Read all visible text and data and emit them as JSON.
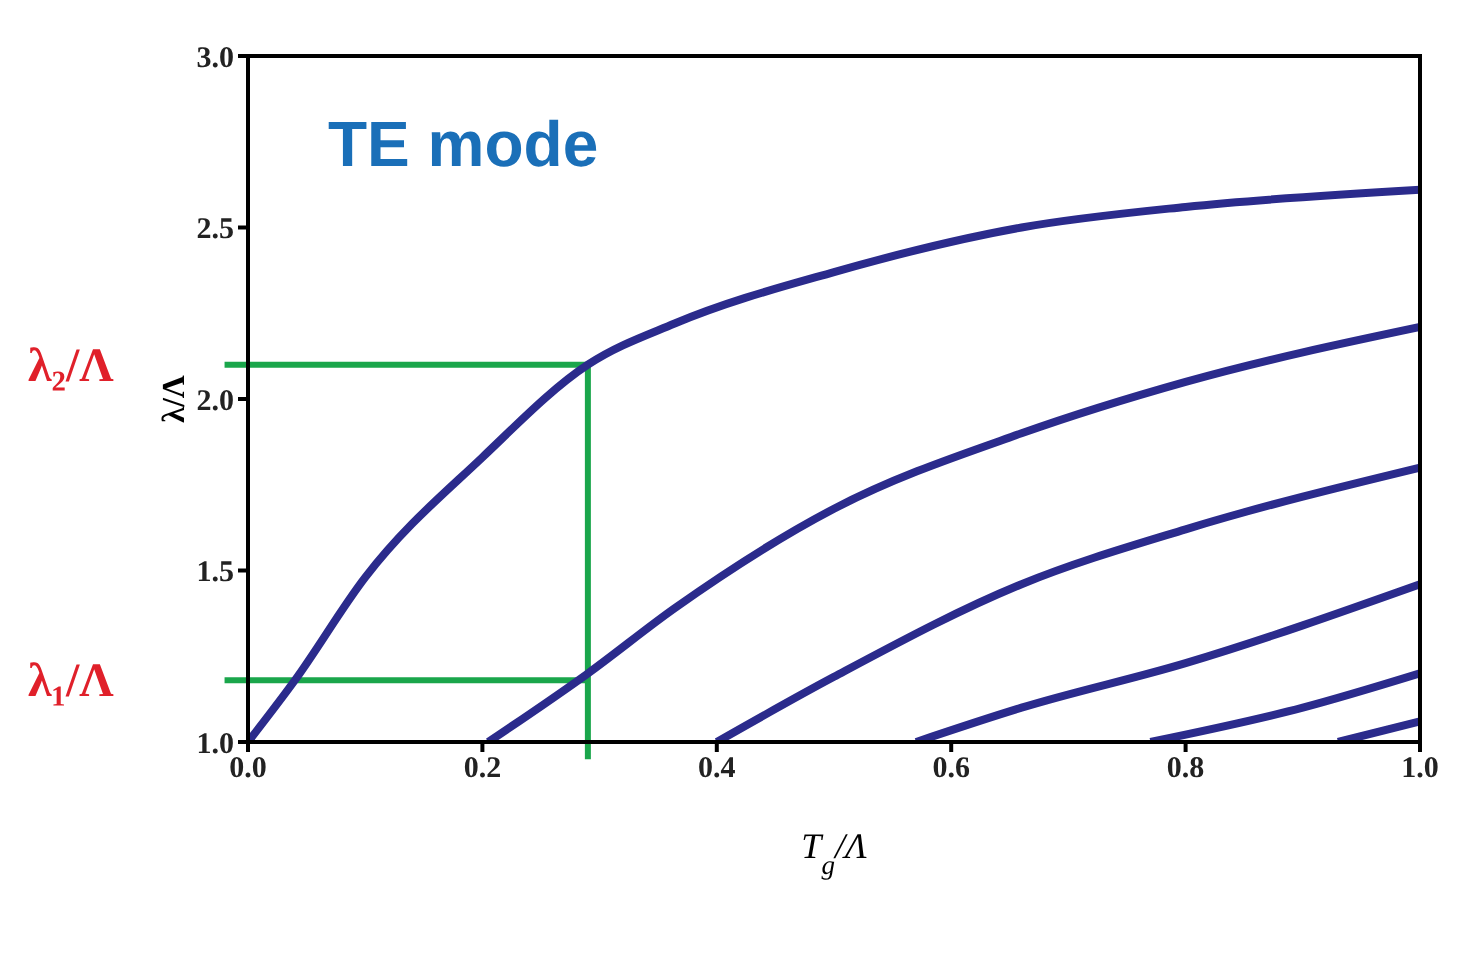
{
  "chart_data": {
    "type": "line",
    "title": "TE mode",
    "xlabel": "T$_{g}$/Λ",
    "ylabel": "λ/Λ",
    "xlim": [
      0,
      1
    ],
    "xticks": [
      {
        "value": 0,
        "label": "0.0"
      },
      0.2,
      0.4,
      0.6,
      0.8,
      {
        "value": 1,
        "label": "1.0"
      }
    ],
    "ylim": [
      1,
      3
    ],
    "yticks": [
      {
        "value": 1,
        "label": "1.0"
      },
      1.5,
      {
        "value": 2,
        "label": "2.0"
      },
      2.5,
      {
        "value": 3,
        "label": "3.0"
      }
    ],
    "grid": false,
    "marker": "none",
    "line_style": "solid",
    "series": [
      {
        "color": "#2b2b8c",
        "x": [
          0,
          0.04,
          0.1,
          0.2,
          0.29,
          0.364,
          0.5,
          0.66,
          0.8,
          1.0
        ],
        "values": [
          1.0,
          1.18,
          1.48,
          1.83,
          2.1,
          2.22,
          2.37,
          2.5,
          2.56,
          2.61
        ]
      },
      {
        "color": "#2b2b8c",
        "x": [
          0.205,
          0.29,
          0.364,
          0.5,
          0.66,
          0.8,
          1.0
        ],
        "values": [
          1.0,
          1.2,
          1.39,
          1.68,
          1.9,
          2.05,
          2.21
        ]
      },
      {
        "color": "#2b2b8c",
        "x": [
          0.4,
          0.5,
          0.66,
          0.8,
          1.0
        ],
        "values": [
          1.0,
          1.19,
          1.46,
          1.62,
          1.8
        ]
      },
      {
        "color": "#2b2b8c",
        "x": [
          0.57,
          0.66,
          0.8,
          1.0
        ],
        "values": [
          1.0,
          1.1,
          1.23,
          1.46
        ]
      },
      {
        "color": "#2b2b8c",
        "x": [
          0.77,
          0.9,
          1.0
        ],
        "values": [
          1.0,
          1.1,
          1.2
        ]
      },
      {
        "color": "#2b2b8c",
        "x": [
          0.93,
          1.0
        ],
        "values": [
          1.0,
          1.06
        ]
      }
    ],
    "ref_lines": [
      {
        "axis": "y",
        "value": 2.1,
        "label": "λ₂/Λ",
        "color": "#1aa64b"
      },
      {
        "axis": "y",
        "value": 1.18,
        "label": "λ₁/Λ",
        "color": "#1aa64b"
      },
      {
        "axis": "x",
        "value": 0.29,
        "color": "#1aa64b"
      }
    ]
  }
}
